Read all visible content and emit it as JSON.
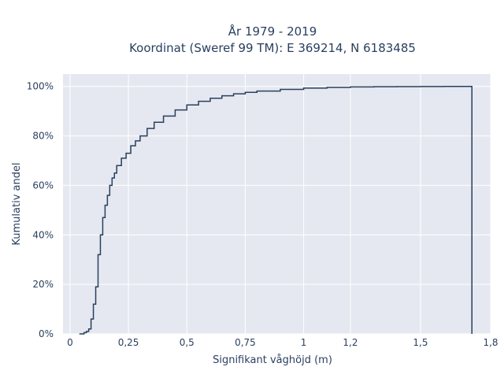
{
  "chart_data": {
    "type": "line",
    "step": true,
    "title": [
      "År 1979 - 2019",
      "Koordinat (Sweref 99 TM): E 369214, N 6183485"
    ],
    "xlabel": "Signifikant våghöjd (m)",
    "ylabel": "Kumulativ andel",
    "xlim": [
      -0.03,
      1.8
    ],
    "ylim": [
      0,
      1.05
    ],
    "x_ticks": [
      0,
      0.25,
      0.5,
      0.75,
      1,
      1.2,
      1.5,
      1.8
    ],
    "x_tick_labels": [
      "0",
      "0,25",
      "0,5",
      "0,75",
      "1",
      "1,2",
      "1,5",
      "1,8"
    ],
    "y_ticks": [
      0,
      0.2,
      0.4,
      0.6,
      0.8,
      1.0
    ],
    "y_tick_labels": [
      "0%",
      "20%",
      "40%",
      "60%",
      "80%",
      "100%"
    ],
    "grid": true,
    "colors": {
      "plot_bg": "#e5e8f0",
      "grid": "#ffffff",
      "line": "#2a3f5f",
      "text": "#2a3f5f"
    },
    "series": [
      {
        "x": [
          0.04,
          0.06,
          0.07,
          0.08,
          0.09,
          0.1,
          0.11,
          0.12,
          0.13,
          0.14,
          0.15,
          0.16,
          0.17,
          0.18,
          0.19,
          0.2,
          0.22,
          0.24,
          0.26,
          0.28,
          0.3,
          0.33,
          0.36,
          0.4,
          0.45,
          0.5,
          0.55,
          0.6,
          0.65,
          0.7,
          0.75,
          0.8,
          0.9,
          1.0,
          1.1,
          1.2,
          1.3,
          1.4,
          1.5,
          1.6,
          1.71,
          1.72
        ],
        "y": [
          0.0,
          0.005,
          0.01,
          0.02,
          0.06,
          0.12,
          0.19,
          0.32,
          0.4,
          0.47,
          0.52,
          0.56,
          0.6,
          0.63,
          0.65,
          0.68,
          0.71,
          0.73,
          0.76,
          0.78,
          0.8,
          0.83,
          0.855,
          0.88,
          0.905,
          0.925,
          0.94,
          0.952,
          0.962,
          0.97,
          0.976,
          0.981,
          0.988,
          0.993,
          0.996,
          0.998,
          0.9985,
          0.999,
          0.9995,
          0.9998,
          1.0,
          0.0
        ]
      }
    ]
  }
}
